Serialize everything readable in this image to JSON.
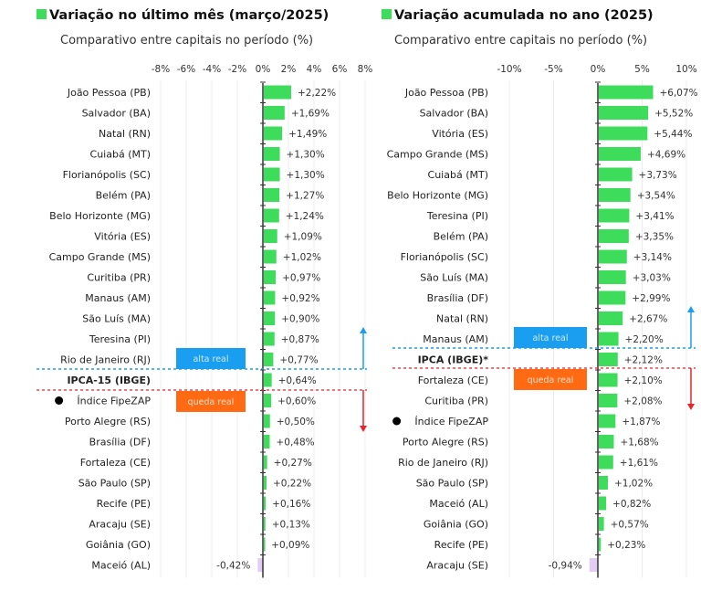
{
  "colors": {
    "bar": "#3ddc5a",
    "negative": "#e3cdf2",
    "alta": "#1a9ef0",
    "queda": "#ff6a12",
    "up_arrow": "#1a9ef0",
    "down_arrow": "#e8232b"
  },
  "chart_data": [
    {
      "type": "bar",
      "title": "Variação no último mês (março/2025)",
      "subtitle": "Comparativo entre capitais no período (%)",
      "xlim": [
        -8,
        8
      ],
      "ticks": [
        "-8%",
        "-6%",
        "-4%",
        "-2%",
        "0%",
        "2%",
        "4%",
        "6%",
        "8%"
      ],
      "tick_values": [
        -8,
        -6,
        -4,
        -2,
        0,
        2,
        4,
        6,
        8
      ],
      "categories": [
        "João Pessoa (PB)",
        "Salvador (BA)",
        "Natal (RN)",
        "Cuiabá (MT)",
        "Florianópolis (SC)",
        "Belém (PA)",
        "Belo Horizonte (MG)",
        "Vitória (ES)",
        "Campo Grande (MS)",
        "Curitiba (PR)",
        "Manaus (AM)",
        "São Luís (MA)",
        "Teresina (PI)",
        "Rio de Janeiro (RJ)",
        "IPCA-15 (IBGE)",
        "Índice FipeZAP",
        "Porto Alegre (RS)",
        "Brasília (DF)",
        "Fortaleza (CE)",
        "São Paulo (SP)",
        "Recife (PE)",
        "Aracaju (SE)",
        "Goiânia (GO)",
        "Maceió (AL)"
      ],
      "values": [
        2.22,
        1.69,
        1.49,
        1.3,
        1.3,
        1.27,
        1.24,
        1.09,
        1.02,
        0.97,
        0.92,
        0.9,
        0.87,
        0.77,
        0.64,
        0.6,
        0.5,
        0.48,
        0.27,
        0.22,
        0.16,
        0.13,
        0.09,
        -0.42
      ],
      "value_labels": [
        "+2,22%",
        "+1,69%",
        "+1,49%",
        "+1,30%",
        "+1,30%",
        "+1,27%",
        "+1,24%",
        "+1,09%",
        "+1,02%",
        "+0,97%",
        "+0,92%",
        "+0,90%",
        "+0,87%",
        "+0,77%",
        "+0,64%",
        "+0,60%",
        "+0,50%",
        "+0,48%",
        "+0,27%",
        "+0,22%",
        "+0,16%",
        "+0,13%",
        "+0,09%",
        "-0,42%"
      ],
      "reference_index": 14,
      "fipezap_index": 15,
      "annotations": {
        "above": "alta real",
        "below": "queda real"
      }
    },
    {
      "type": "bar",
      "title": "Variação acumulada no ano (2025)",
      "subtitle": "Comparativo entre capitais no período (%)",
      "xlim": [
        -10,
        10
      ],
      "ticks": [
        "-10%",
        "-5%",
        "0%",
        "5%",
        "10%"
      ],
      "tick_values": [
        -10,
        -5,
        0,
        5,
        10
      ],
      "categories": [
        "João Pessoa (PB)",
        "Salvador (BA)",
        "Vitória (ES)",
        "Campo Grande (MS)",
        "Cuiabá (MT)",
        "Belo Horizonte (MG)",
        "Teresina (PI)",
        "Belém (PA)",
        "Florianópolis (SC)",
        "São Luís (MA)",
        "Brasília (DF)",
        "Natal (RN)",
        "Manaus (AM)",
        "IPCA (IBGE)*",
        "Fortaleza (CE)",
        "Curitiba (PR)",
        "Índice FipeZAP",
        "Porto Alegre (RS)",
        "Rio de Janeiro (RJ)",
        "São Paulo (SP)",
        "Maceió (AL)",
        "Goiânia (GO)",
        "Recife (PE)",
        "Aracaju (SE)"
      ],
      "values": [
        6.07,
        5.52,
        5.44,
        4.69,
        3.73,
        3.54,
        3.41,
        3.35,
        3.14,
        3.03,
        2.99,
        2.67,
        2.2,
        2.12,
        2.1,
        2.08,
        1.87,
        1.68,
        1.61,
        1.02,
        0.82,
        0.57,
        0.23,
        -0.94
      ],
      "value_labels": [
        "+6,07%",
        "+5,52%",
        "+5,44%",
        "+4,69%",
        "+3,73%",
        "+3,54%",
        "+3,41%",
        "+3,35%",
        "+3,14%",
        "+3,03%",
        "+2,99%",
        "+2,67%",
        "+2,20%",
        "+2,12%",
        "+2,10%",
        "+2,08%",
        "+1,87%",
        "+1,68%",
        "+1,61%",
        "+1,02%",
        "+0,82%",
        "+0,57%",
        "+0,23%",
        "-0,94%"
      ],
      "reference_index": 13,
      "fipezap_index": 16,
      "annotations": {
        "above": "alta real",
        "below": "queda real"
      }
    }
  ]
}
